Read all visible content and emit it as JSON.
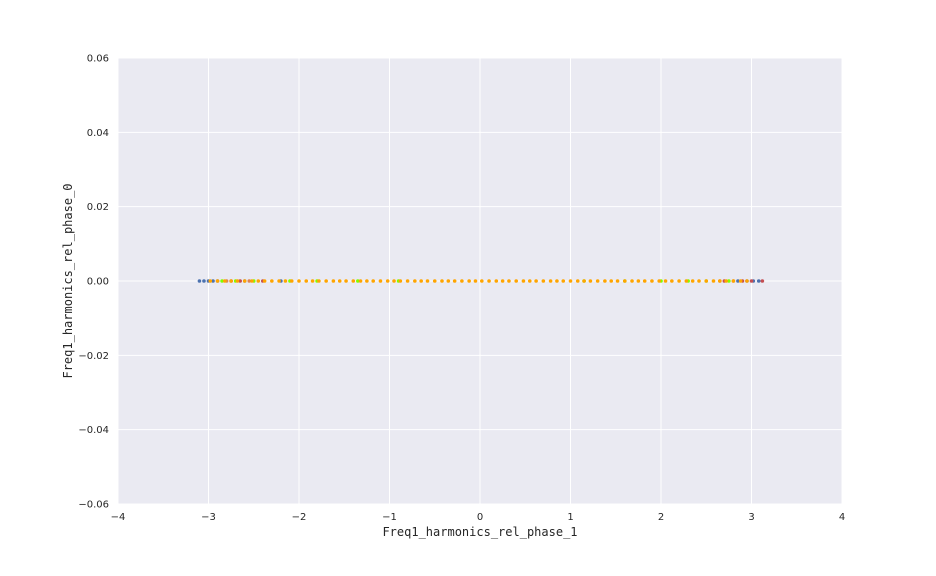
{
  "chart_data": {
    "type": "scatter",
    "title": "",
    "xlabel": "Freq1_harmonics_rel_phase_1",
    "ylabel": "Freq1_harmonics_rel_phase_0",
    "xlim": [
      -4,
      4
    ],
    "ylim": [
      -0.06,
      0.06
    ],
    "x_ticks": [
      -4,
      -3,
      -2,
      -1,
      0,
      1,
      2,
      3,
      4
    ],
    "y_ticks": [
      0.06,
      0.04,
      0.02,
      0.0,
      -0.02,
      -0.04,
      -0.06
    ],
    "x_tick_labels": [
      "−4",
      "−3",
      "−2",
      "−1",
      "0",
      "1",
      "2",
      "3",
      "4"
    ],
    "y_tick_labels": [
      "0.06",
      "0.04",
      "0.02",
      "0.00",
      "−0.02",
      "−0.04",
      "−0.06"
    ],
    "grid": true,
    "legend": "none",
    "background_color": "#eaeaf2",
    "grid_color": "#ffffff",
    "series": [
      {
        "color": "#4c72b0",
        "y": 0,
        "x": [
          -3.1,
          -3.05,
          -3.0,
          -2.95,
          -2.9,
          -2.6,
          -2.2,
          2.85,
          2.95,
          3.02,
          3.08
        ]
      },
      {
        "color": "#c44e52",
        "y": 0,
        "x": [
          -2.75,
          -2.65,
          -2.4,
          2.7,
          2.9,
          3.0,
          3.12
        ]
      },
      {
        "color": "#dd8452",
        "y": 0,
        "x": [
          -2.8,
          -2.55,
          2.65,
          2.8
        ]
      },
      {
        "color": "#7fff00",
        "y": 0,
        "x": [
          -2.85,
          -2.7,
          -2.5,
          -2.1,
          -1.8,
          -1.35,
          -0.9,
          1.15,
          1.6,
          2.0,
          2.3,
          2.5,
          2.75
        ]
      },
      {
        "color": "#ffa500",
        "y": 0,
        "x": [
          -2.98,
          -2.9,
          -2.82,
          -2.75,
          -2.68,
          -2.6,
          -2.52,
          -2.45,
          -2.38,
          -2.3,
          -2.22,
          -2.15,
          -2.08,
          -2.0,
          -1.92,
          -1.85,
          -1.78,
          -1.7,
          -1.62,
          -1.55,
          -1.48,
          -1.4,
          -1.32,
          -1.25,
          -1.18,
          -1.1,
          -1.02,
          -0.95,
          -0.88,
          -0.8,
          -0.72,
          -0.65,
          -0.58,
          -0.5,
          -0.42,
          -0.35,
          -0.28,
          -0.2,
          -0.12,
          -0.05,
          0.02,
          0.1,
          0.18,
          0.25,
          0.32,
          0.4,
          0.48,
          0.55,
          0.62,
          0.7,
          0.78,
          0.85,
          0.92,
          1.0,
          1.08,
          1.15,
          1.22,
          1.3,
          1.38,
          1.45,
          1.52,
          1.6,
          1.68,
          1.75,
          1.82,
          1.9,
          1.98,
          2.05,
          2.12,
          2.2,
          2.28,
          2.35,
          2.42,
          2.5,
          2.58,
          2.65,
          2.72,
          2.8,
          2.88,
          2.95
        ]
      }
    ]
  }
}
